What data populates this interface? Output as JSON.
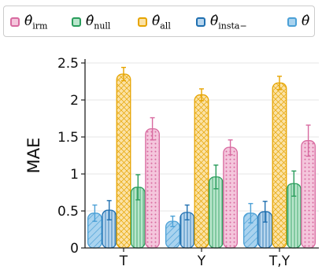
{
  "chart_data": {
    "type": "bar",
    "categories": [
      "T",
      "Y",
      "T,Y"
    ],
    "ylabel": "MAE",
    "ylim": [
      0,
      2.5
    ],
    "yticks": [
      0,
      0.5,
      1,
      1.5,
      2,
      2.5
    ],
    "ytick_labels": [
      "0",
      "0.5",
      "1",
      "1.5",
      "2",
      "2.5"
    ],
    "grid": true,
    "legend_position": "top",
    "series": [
      {
        "name_main": "θ̂",
        "name_sub": "insta−",
        "values": [
          0.47,
          0.36,
          0.47
        ],
        "errors": [
          0.11,
          0.07,
          0.13
        ],
        "color": "#a9d3ef",
        "edge": "#4ba0d6",
        "pattern": "hatch"
      },
      {
        "name_main": "θ̂",
        "name_sub": "insta−",
        "values": [
          0.51,
          0.48,
          0.49
        ],
        "errors": [
          0.13,
          0.1,
          0.14
        ],
        "color": "#b8d6ee",
        "edge": "#1f6fb0",
        "pattern": "vlines"
      },
      {
        "name_main": "θ̂",
        "name_sub": "all",
        "values": [
          2.35,
          2.07,
          2.23
        ],
        "errors": [
          0.09,
          0.08,
          0.09
        ],
        "color": "#fbe2a6",
        "edge": "#e6a400",
        "pattern": "cross"
      },
      {
        "name_main": "θ̂",
        "name_sub": "null",
        "values": [
          0.82,
          0.96,
          0.87
        ],
        "errors": [
          0.17,
          0.16,
          0.17
        ],
        "color": "#b9e6cc",
        "edge": "#2a9d5c",
        "pattern": "vlines"
      },
      {
        "name_main": "θ̂",
        "name_sub": "irm",
        "values": [
          1.61,
          1.36,
          1.45
        ],
        "errors": [
          0.15,
          0.1,
          0.21
        ],
        "color": "#f4c6dc",
        "edge": "#d86aa0",
        "pattern": "dots"
      }
    ]
  },
  "legend": {
    "items": [
      {
        "main": "θ̂",
        "sub": "irm",
        "fill": "#f4c6dc",
        "edge": "#d86aa0"
      },
      {
        "main": "θ̂",
        "sub": "null",
        "fill": "#b9e6cc",
        "edge": "#2a9d5c"
      },
      {
        "main": "θ̂",
        "sub": "all",
        "fill": "#fbe2a6",
        "edge": "#e6a400"
      },
      {
        "main": "θ̂",
        "sub": "insta−",
        "fill": "#b8d6ee",
        "edge": "#1f6fb0"
      },
      {
        "main": "θ̂",
        "sub": "",
        "fill": "#a9d3ef",
        "edge": "#4ba0d6"
      }
    ]
  }
}
